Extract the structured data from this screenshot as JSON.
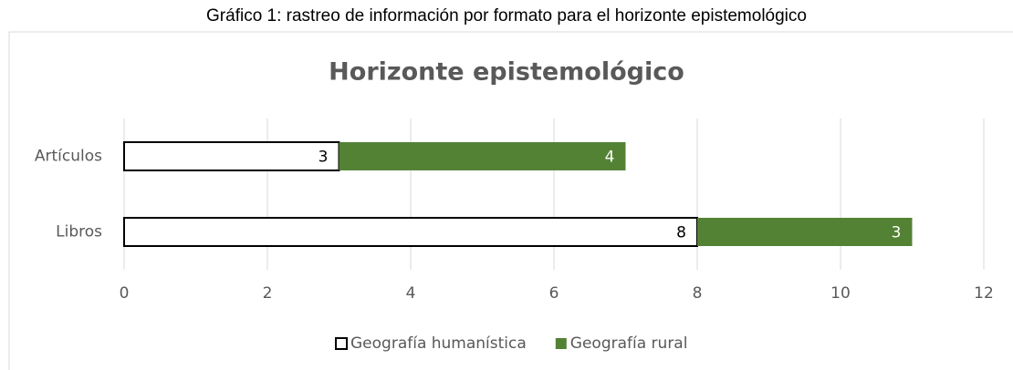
{
  "caption": "Gráfico 1: rastreo de información por formato para el horizonte epistemológico",
  "chart_data": {
    "type": "stacked_barh",
    "title": "Horizonte epistemológico",
    "categories": [
      "Artículos",
      "Libros"
    ],
    "series": [
      {
        "name": "Geografía humanística",
        "color": "#ffffff",
        "edge": "#000000",
        "label_color": "#000000",
        "values": [
          3,
          8
        ]
      },
      {
        "name": "Geografía rural",
        "color": "#548235",
        "label_color": "#ffffff",
        "values": [
          4,
          3
        ]
      }
    ],
    "xlim": [
      0,
      12
    ],
    "xticks": [
      0,
      2,
      4,
      6,
      8,
      10,
      12
    ],
    "grid": true,
    "legend": "bottom"
  }
}
